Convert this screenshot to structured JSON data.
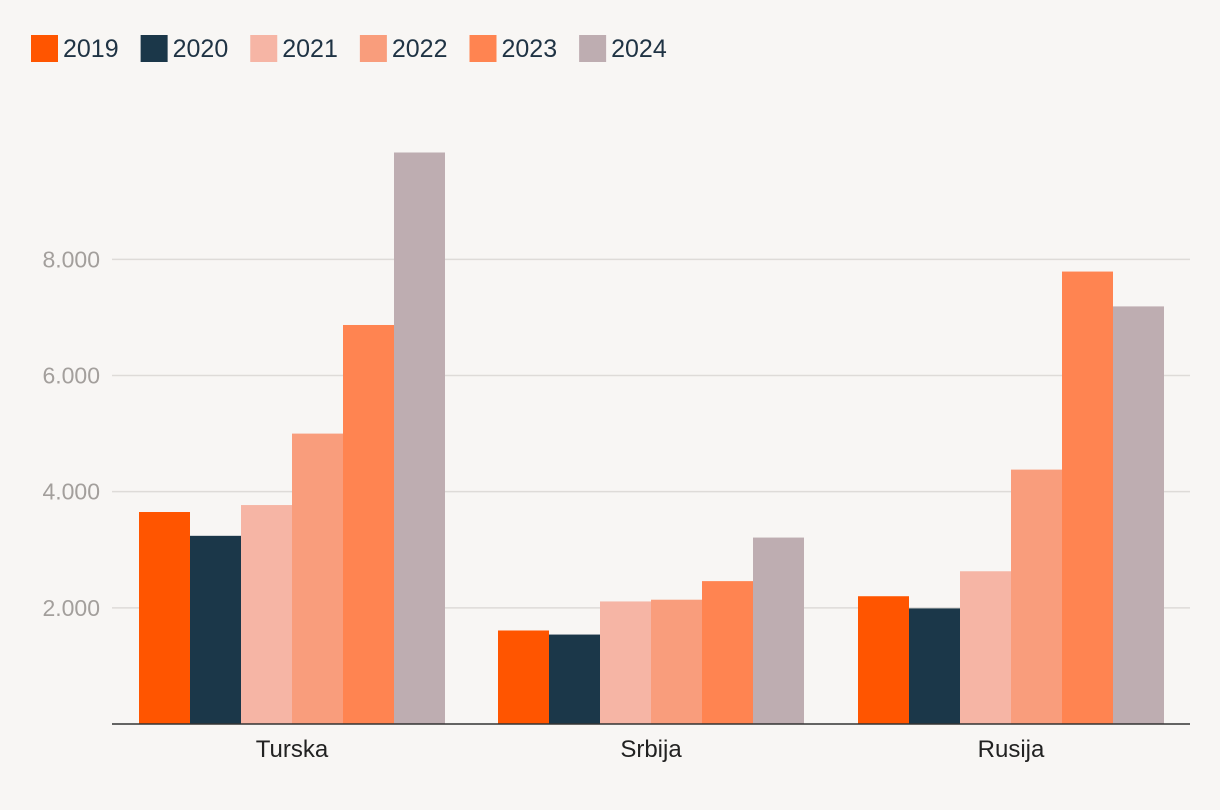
{
  "chart_data": {
    "type": "bar",
    "categories": [
      "Turska",
      "Srbija",
      "Rusija"
    ],
    "series": [
      {
        "name": "2019",
        "color": "#ff5500",
        "values": [
          3650,
          1610,
          2200
        ]
      },
      {
        "name": "2020",
        "color": "#1b3749",
        "values": [
          3240,
          1540,
          1990
        ]
      },
      {
        "name": "2021",
        "color": "#f6b5a5",
        "values": [
          3770,
          2110,
          2630
        ]
      },
      {
        "name": "2022",
        "color": "#f99d7c",
        "values": [
          5000,
          2140,
          4380
        ]
      },
      {
        "name": "2023",
        "color": "#ff8451",
        "values": [
          6870,
          2460,
          7790
        ]
      },
      {
        "name": "2024",
        "color": "#beadb1",
        "values": [
          9840,
          3210,
          7190
        ]
      }
    ],
    "ylim": [
      0,
      10000
    ],
    "yticks": [
      2000,
      4000,
      6000,
      8000
    ],
    "ytick_labels": [
      "2.000",
      "4.000",
      "6.000",
      "8.000"
    ],
    "grid": true,
    "legend": "top-left",
    "title": "",
    "xlabel": "",
    "ylabel": ""
  }
}
